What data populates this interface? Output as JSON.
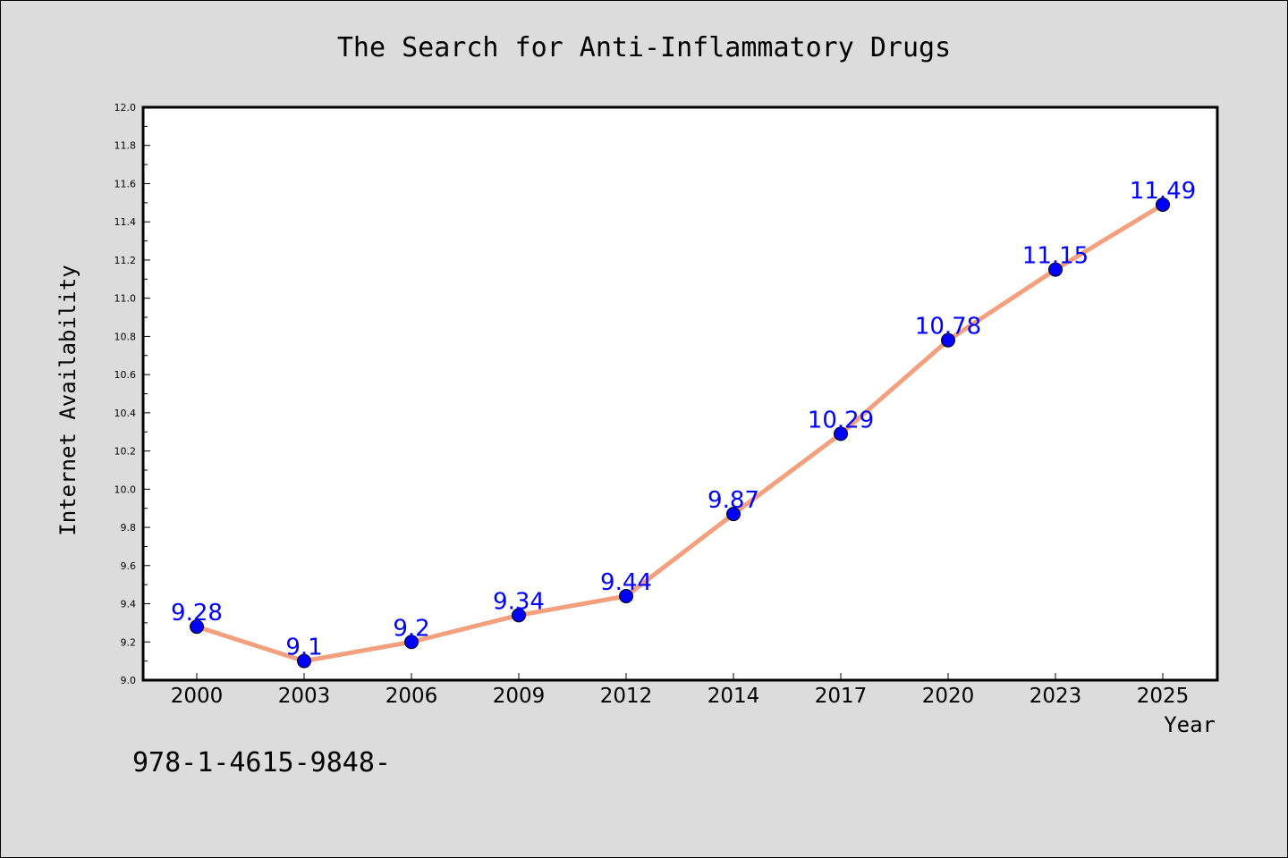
{
  "chart_data": {
    "type": "line",
    "title": "The Search for Anti-Inflammatory Drugs",
    "xlabel": "Year",
    "ylabel": "Internet Availability",
    "categories": [
      "2000",
      "2003",
      "2006",
      "2009",
      "2012",
      "2014",
      "2017",
      "2020",
      "2023",
      "2025"
    ],
    "series": [
      {
        "values": [
          9.28,
          9.1,
          9.2,
          9.34,
          9.44,
          9.87,
          10.29,
          10.78,
          11.15,
          11.49
        ],
        "data_labels": [
          "9.28",
          "9.1",
          "9.2",
          "9.34",
          "9.44",
          "9.87",
          "10.29",
          "10.78",
          "11.15",
          "11.49"
        ]
      }
    ],
    "ylim": [
      9.0,
      12.0
    ],
    "yticks": [
      "9.0",
      "9.2",
      "9.4",
      "9.6",
      "9.8",
      "10.0",
      "10.2",
      "10.4",
      "10.6",
      "10.8",
      "11.0",
      "11.2",
      "11.4",
      "11.6",
      "11.8",
      "12.0"
    ],
    "grid": false,
    "legend": "none",
    "colors": {
      "line": "#f4a07e",
      "marker": "#0000ff",
      "data_label": "#0000ff",
      "background": "#dcdcdc",
      "plot_background": "#ffffff"
    }
  },
  "footnote": "978-1-4615-9848-"
}
